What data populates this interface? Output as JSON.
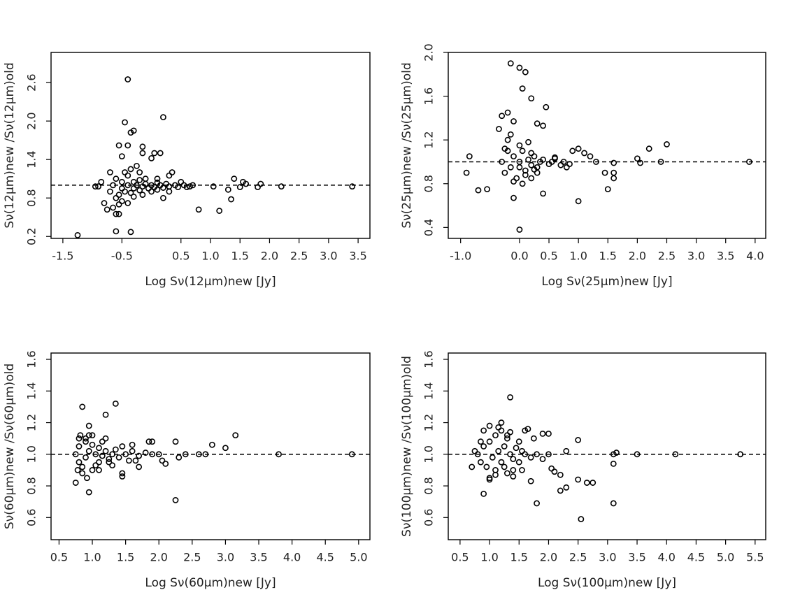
{
  "chart_data": [
    {
      "type": "scatter",
      "xlabel": "Log Sν(12μm)new [Jy]",
      "ylabel": "Sν(12μm)new /Sν(12μm)old",
      "xlim": [
        -1.7,
        3.7
      ],
      "ylim": [
        0.17,
        3.07
      ],
      "xticks": [
        -1.5,
        -0.5,
        0.5,
        {
          "value": 1,
          "label": "1.0"
        },
        1.5,
        {
          "value": 2,
          "label": "2.0"
        },
        2.5,
        {
          "value": 3,
          "label": "3.0"
        },
        3.5
      ],
      "yticks": [
        0.2,
        0.8,
        1.4,
        {
          "value": 2,
          "label": "2.0"
        },
        2.6
      ],
      "hline": 1,
      "x": [
        -1.25,
        -0.6,
        -0.35,
        -0.4,
        0.2,
        -0.45,
        -0.3,
        -0.35,
        -0.55,
        -0.4,
        -0.15,
        -0.15,
        0.05,
        0.15,
        -0.5,
        0.0,
        -0.85,
        -0.9,
        -0.95,
        -0.8,
        -0.75,
        -0.6,
        -0.55,
        -0.65,
        0.8,
        1.15,
        1.35,
        1.4,
        1.55,
        1.6,
        1.85,
        1.8,
        1.5,
        1.3,
        1.05,
        2.2,
        3.4,
        0.5,
        0.7,
        0.6,
        0.3,
        0.2,
        0.3,
        0.35,
        -0.2,
        -0.1,
        -0.7,
        -0.65,
        -0.6,
        -0.55,
        -0.5,
        -0.5,
        -0.45,
        -0.4,
        -0.4,
        -0.35,
        -0.3,
        -0.3,
        -0.25,
        -0.2,
        -0.2,
        -0.15,
        -0.1,
        -0.05,
        0.0,
        0.05,
        0.1,
        0.1,
        0.15,
        0.2,
        0.25,
        0.3,
        0.4,
        0.45,
        0.55,
        0.65,
        -0.6,
        -0.5,
        -0.45,
        -0.35,
        -0.25,
        -0.15,
        0.0,
        0.1,
        -0.7,
        -0.55,
        -0.4,
        -0.3
      ],
      "y": [
        0.22,
        0.28,
        0.27,
        2.65,
        2.06,
        1.98,
        1.85,
        1.82,
        1.62,
        1.62,
        1.6,
        1.5,
        1.5,
        1.5,
        1.45,
        1.42,
        1.05,
        0.98,
        0.98,
        0.72,
        0.62,
        0.55,
        0.55,
        0.65,
        0.62,
        0.6,
        0.78,
        1.1,
        1.05,
        1.02,
        1.02,
        0.97,
        0.97,
        0.93,
        0.98,
        0.98,
        0.98,
        1.05,
        1.0,
        0.97,
        0.9,
        0.8,
        1.15,
        1.2,
        1.2,
        1.1,
        0.9,
        1.0,
        1.1,
        0.85,
        0.95,
        1.05,
        0.9,
        1.0,
        1.15,
        0.88,
        0.95,
        1.05,
        1.0,
        0.92,
        1.08,
        0.98,
        1.02,
        0.95,
        1.0,
        0.97,
        1.04,
        0.93,
        1.0,
        0.96,
        1.02,
        0.98,
        1.0,
        0.97,
        1.0,
        0.98,
        0.8,
        0.75,
        1.2,
        1.25,
        1.3,
        0.85,
        0.9,
        1.1,
        1.2,
        0.7,
        0.72,
        0.82
      ]
    },
    {
      "type": "scatter",
      "xlabel": "Log Sν(25μm)new [Jy]",
      "ylabel": "Sν(25μm)new /Sν(25μm)old",
      "xlim": [
        -1.21,
        4.18
      ],
      "ylim": [
        0.3,
        2.0
      ],
      "xticks": [
        {
          "value": -1,
          "label": "-1.0"
        },
        {
          "value": 0,
          "label": "0.0"
        },
        0.5,
        {
          "value": 1,
          "label": "1.0"
        },
        1.5,
        {
          "value": 2,
          "label": "2.0"
        },
        2.5,
        {
          "value": 3,
          "label": "3.0"
        },
        3.5,
        {
          "value": 4,
          "label": "4.0"
        }
      ],
      "yticks": [
        0.4,
        0.8,
        1.2,
        1.6,
        {
          "value": 2,
          "label": "2.0"
        }
      ],
      "hline": 1,
      "x": [
        -0.15,
        0.0,
        0.1,
        0.05,
        0.2,
        0.45,
        -0.2,
        -0.3,
        -0.1,
        0.3,
        0.4,
        -0.35,
        0.0,
        1.0,
        0.4,
        -0.9,
        -0.7,
        -0.55,
        -0.85,
        -0.1,
        1.5,
        1.6,
        1.6,
        1.45,
        2.0,
        2.2,
        2.5,
        2.4,
        2.05,
        3.9,
        1.3,
        1.2,
        1.1,
        1.0,
        0.9,
        0.8,
        1.6,
        -0.3,
        -0.25,
        -0.2,
        -0.15,
        -0.1,
        -0.05,
        0.0,
        0.05,
        0.1,
        0.15,
        0.2,
        0.25,
        0.3,
        0.35,
        0.4,
        0.5,
        0.55,
        0.6,
        0.7,
        0.75,
        0.85,
        -0.2,
        -0.1,
        0.0,
        0.1,
        0.2,
        0.3,
        -0.15,
        0.05,
        0.15,
        0.25,
        -0.25,
        0.0,
        0.2,
        0.6
      ],
      "y": [
        1.9,
        1.86,
        1.82,
        1.67,
        1.58,
        1.5,
        1.45,
        1.42,
        1.37,
        1.35,
        1.33,
        1.3,
        0.38,
        0.64,
        0.71,
        0.9,
        0.74,
        0.75,
        1.05,
        0.67,
        0.75,
        0.85,
        0.9,
        0.9,
        1.03,
        1.12,
        1.16,
        1.0,
        0.99,
        1.0,
        1.0,
        1.05,
        1.08,
        1.12,
        1.1,
        0.95,
        0.99,
        1.0,
        0.9,
        1.1,
        0.95,
        1.05,
        0.85,
        1.0,
        1.1,
        0.92,
        1.02,
        0.97,
        1.05,
        0.95,
        1.0,
        1.02,
        0.98,
        1.0,
        1.03,
        0.97,
        1.0,
        0.98,
        1.2,
        0.82,
        1.15,
        0.88,
        1.08,
        0.9,
        1.25,
        0.8,
        1.18,
        0.93,
        1.12,
        0.95,
        0.85,
        1.04
      ]
    },
    {
      "type": "scatter",
      "xlabel": "Log Sν(60μm)new [Jy]",
      "ylabel": "Sν(60μm)new /Sν(60μm)old",
      "xlim": [
        0.38,
        5.17
      ],
      "ylim": [
        0.46,
        1.64
      ],
      "xticks": [
        0.5,
        {
          "value": 1,
          "label": "1.0"
        },
        1.5,
        {
          "value": 2,
          "label": "2.0"
        },
        2.5,
        {
          "value": 3,
          "label": "3.0"
        },
        3.5,
        {
          "value": 4,
          "label": "4.0"
        },
        4.5,
        {
          "value": 5,
          "label": "5.0"
        }
      ],
      "yticks": [
        0.6,
        0.8,
        {
          "value": 1,
          "label": "1.0"
        },
        1.2,
        1.4,
        1.6
      ],
      "hline": 1,
      "x": [
        0.85,
        1.35,
        1.2,
        0.95,
        0.75,
        0.95,
        2.25,
        1.45,
        1.45,
        2.3,
        2.25,
        2.4,
        2.6,
        2.7,
        2.8,
        3.0,
        3.15,
        3.8,
        4.9,
        2.1,
        2.05,
        1.85,
        1.9,
        1.6,
        1.7,
        0.75,
        0.8,
        0.8,
        0.85,
        0.9,
        0.9,
        0.95,
        1.0,
        1.0,
        1.05,
        1.1,
        1.1,
        1.15,
        1.2,
        1.25,
        1.3,
        1.35,
        1.4,
        1.5,
        1.55,
        1.6,
        1.7,
        1.8,
        1.9,
        2.0,
        0.8,
        0.85,
        0.95,
        1.05,
        1.15,
        1.25,
        0.78,
        0.9,
        1.0,
        1.1,
        1.2,
        1.3,
        1.45,
        1.65,
        0.82,
        0.92
      ],
      "y": [
        1.3,
        1.32,
        1.25,
        1.18,
        0.82,
        0.76,
        0.71,
        0.86,
        0.88,
        0.98,
        1.08,
        1.0,
        1.0,
        1.0,
        1.06,
        1.04,
        1.12,
        1.0,
        1.0,
        0.94,
        0.96,
        1.08,
        1.08,
        1.06,
        0.92,
        1.0,
        0.95,
        1.05,
        0.92,
        1.08,
        0.98,
        1.02,
        0.9,
        1.06,
        1.0,
        0.95,
        1.04,
        0.99,
        1.02,
        0.97,
        1.0,
        1.03,
        0.98,
        1.0,
        0.96,
        1.02,
        0.99,
        1.01,
        1.0,
        1.0,
        1.1,
        0.88,
        1.12,
        0.93,
        1.08,
        0.95,
        0.9,
        1.1,
        1.12,
        0.9,
        1.1,
        0.93,
        1.05,
        0.96,
        1.12,
        0.85
      ]
    },
    {
      "type": "scatter",
      "xlabel": "Log Sν(100μm)new [Jy]",
      "ylabel": "Sν(100μm)new /Sν(100μm)old",
      "xlim": [
        0.3,
        5.68
      ],
      "ylim": [
        0.46,
        1.64
      ],
      "xticks": [
        0.5,
        {
          "value": 1,
          "label": "1.0"
        },
        1.5,
        {
          "value": 2,
          "label": "2.0"
        },
        2.5,
        {
          "value": 3,
          "label": "3.0"
        },
        3.5,
        {
          "value": 4,
          "label": "4.0"
        },
        4.5,
        {
          "value": 5,
          "label": "5.0"
        },
        5.5
      ],
      "yticks": [
        0.6,
        0.8,
        {
          "value": 1,
          "label": "1.0"
        },
        1.2,
        1.4,
        1.6
      ],
      "hline": 1,
      "x": [
        1.35,
        0.9,
        1.8,
        2.55,
        3.1,
        2.5,
        2.65,
        2.75,
        2.3,
        2.2,
        2.2,
        2.1,
        2.05,
        3.1,
        3.1,
        3.15,
        3.5,
        4.15,
        5.25,
        2.5,
        2.3,
        1.7,
        1.55,
        1.4,
        1.0,
        0.7,
        1.6,
        1.65,
        1.9,
        2.0,
        1.75,
        0.8,
        0.85,
        0.9,
        0.95,
        1.0,
        1.05,
        1.1,
        1.1,
        1.15,
        1.2,
        1.2,
        1.25,
        1.3,
        1.3,
        1.35,
        1.4,
        1.45,
        1.5,
        1.55,
        1.6,
        1.7,
        1.8,
        1.9,
        2.0,
        0.9,
        1.0,
        1.1,
        1.2,
        1.3,
        1.4,
        1.5,
        1.0,
        1.15,
        1.25,
        1.35,
        0.75,
        0.85
      ],
      "y": [
        1.36,
        0.75,
        0.69,
        0.59,
        0.69,
        0.84,
        0.82,
        0.82,
        0.79,
        0.77,
        0.87,
        0.89,
        0.91,
        0.94,
        1.0,
        1.01,
        1.0,
        1.0,
        1.0,
        1.09,
        1.02,
        0.83,
        0.9,
        0.86,
        0.84,
        0.92,
        1.15,
        1.16,
        1.13,
        1.13,
        1.1,
        1.0,
        0.95,
        1.05,
        0.92,
        1.08,
        0.98,
        1.12,
        0.9,
        1.02,
        1.15,
        0.95,
        1.05,
        0.88,
        1.1,
        1.0,
        0.97,
        1.04,
        0.95,
        1.02,
        1.0,
        0.98,
        1.0,
        0.97,
        1.0,
        1.15,
        1.18,
        0.87,
        1.2,
        1.12,
        0.9,
        1.08,
        0.85,
        1.17,
        0.92,
        1.14,
        1.02,
        1.08
      ]
    }
  ]
}
